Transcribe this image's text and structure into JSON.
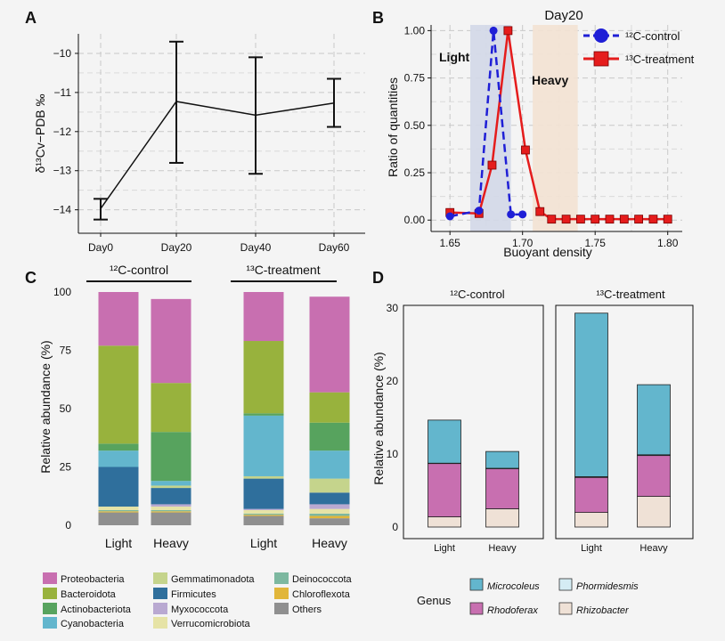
{
  "panels": [
    "A",
    "B",
    "C",
    "D"
  ],
  "chart_data": [
    {
      "id": "A",
      "type": "line",
      "title": "",
      "xlabel": "",
      "ylabel": "δ¹³Cv−PDB ‰",
      "categories": [
        "Day0",
        "Day20",
        "Day40",
        "Day60"
      ],
      "values": [
        -13.97,
        -11.23,
        -11.58,
        -11.27
      ],
      "err_low": [
        -14.25,
        -12.8,
        -13.08,
        -11.88
      ],
      "err_high": [
        -13.72,
        -9.7,
        -10.1,
        -10.65
      ],
      "yticks": [
        -14,
        -13,
        -12,
        -11,
        -10
      ],
      "ylim": [
        -14.6,
        -9.5
      ],
      "grid": true
    },
    {
      "id": "B",
      "type": "line",
      "title": "Day20",
      "xlabel": "Buoyant density",
      "ylabel": "Ratio of quantities",
      "xlim": [
        1.637,
        1.81
      ],
      "ylim": [
        -0.06,
        1.03
      ],
      "xticks": [
        "1.65",
        "1.70",
        "1.75",
        "1.80"
      ],
      "yticks": [
        "0.00",
        "0.25",
        "0.50",
        "0.75",
        "1.00"
      ],
      "regions": [
        {
          "label": "Light",
          "x0": 1.664,
          "x1": 1.692,
          "color": "#d3d8e8"
        },
        {
          "label": "Heavy",
          "x0": 1.707,
          "x1": 1.738,
          "color": "#f3e2d3"
        }
      ],
      "series": [
        {
          "name": "¹²C-control",
          "color": "#1f1fd6",
          "x": [
            1.65,
            1.67,
            1.68,
            1.692,
            1.7
          ],
          "y": [
            0.02,
            0.05,
            1.0,
            0.03,
            0.03
          ]
        },
        {
          "name": "¹³C-treatment",
          "color": "#e51c1c",
          "x": [
            1.65,
            1.67,
            1.679,
            1.69,
            1.702,
            1.712,
            1.72,
            1.73,
            1.74,
            1.75,
            1.76,
            1.77,
            1.78,
            1.79,
            1.8
          ],
          "y": [
            0.04,
            0.035,
            0.29,
            1.0,
            0.37,
            0.045,
            0.005,
            0.005,
            0.005,
            0.005,
            0.005,
            0.005,
            0.005,
            0.005,
            0.005
          ]
        }
      ],
      "grid": true,
      "legend": "top-right"
    },
    {
      "id": "C",
      "type": "bar",
      "stacked": true,
      "xlabel": "",
      "ylabel": "Relative abundance (%)",
      "ylim": [
        0,
        100
      ],
      "yticks": [
        0,
        25,
        50,
        75,
        100
      ],
      "groups": [
        "¹²C-control",
        "¹³C-treatment"
      ],
      "categories": [
        "Light",
        "Heavy",
        "Light",
        "Heavy"
      ],
      "legend_entries": [
        "Proteobacteria",
        "Bacteroidota",
        "Actinobacteriota",
        "Cyanobacteria",
        "Gemmatimonadota",
        "Firmicutes",
        "Myxococcota",
        "Verrucomicrobiota",
        "Deinococcota",
        "Chloroflexota",
        "Others"
      ],
      "colors": [
        "#c86fb0",
        "#98b23d",
        "#57a35e",
        "#63b6cd",
        "#c5d48c",
        "#2f6f9c",
        "#b9a9d1",
        "#e6e3a6",
        "#7db8a0",
        "#e1b63a",
        "#8f8f8f"
      ],
      "stack_order": [
        "Others",
        "Chloroflexota",
        "Deinococcota",
        "Verrucomicrobiota",
        "Myxococcota",
        "Firmicutes",
        "Gemmatimonadota",
        "Cyanobacteria",
        "Actinobacteriota",
        "Bacteroidota",
        "Proteobacteria"
      ],
      "series": [
        {
          "name": "Proteobacteria",
          "values": [
            23,
            36,
            21,
            41
          ]
        },
        {
          "name": "Bacteroidota",
          "values": [
            42,
            21,
            31,
            13
          ]
        },
        {
          "name": "Actinobacteriota",
          "values": [
            3,
            21,
            1,
            12
          ]
        },
        {
          "name": "Cyanobacteria",
          "values": [
            7,
            2,
            26,
            12
          ]
        },
        {
          "name": "Gemmatimonadota",
          "values": [
            0,
            1,
            1,
            6
          ]
        },
        {
          "name": "Firmicutes",
          "values": [
            17,
            7,
            13,
            5
          ]
        },
        {
          "name": "Myxococcota",
          "values": [
            0,
            1,
            0.5,
            2
          ]
        },
        {
          "name": "Verrucomicrobiota",
          "values": [
            1.5,
            1.5,
            1.5,
            2
          ]
        },
        {
          "name": "Deinococcota",
          "values": [
            0.5,
            0.5,
            0.5,
            1
          ]
        },
        {
          "name": "Chloroflexota",
          "values": [
            0.5,
            0.5,
            0.5,
            1
          ]
        },
        {
          "name": "Others",
          "values": [
            5.5,
            5.5,
            4,
            3
          ]
        }
      ]
    },
    {
      "id": "D",
      "type": "bar",
      "stacked": true,
      "xlabel": "",
      "ylabel": "Relative abundance (%)",
      "ylim": [
        0,
        30
      ],
      "yticks": [
        0,
        10,
        20,
        30
      ],
      "facets": [
        "¹²C-control",
        "¹³C-treatment"
      ],
      "categories": [
        "Light",
        "Heavy"
      ],
      "legend_title": "Genus",
      "legend_entries": [
        "Microcoleus",
        "Phormidesmis",
        "Rhodoferax",
        "Rhizobacter"
      ],
      "colors": [
        "#63b6cd",
        "#d5ecf4",
        "#c86fb0",
        "#efe1d6"
      ],
      "stack_order": [
        "Rhizobacter",
        "Rhodoferax",
        "Phormidesmis",
        "Microcoleus"
      ],
      "series": [
        {
          "name": "Microcoleus",
          "values": [
            [
              5.9,
              2.3
            ],
            [
              22.4,
              9.6
            ]
          ]
        },
        {
          "name": "Phormidesmis",
          "values": [
            [
              0.05,
              0.05
            ],
            [
              0.1,
              0.1
            ]
          ]
        },
        {
          "name": "Rhodoferax",
          "values": [
            [
              7.3,
              5.5
            ],
            [
              4.8,
              5.6
            ]
          ]
        },
        {
          "name": "Rhizobacter",
          "values": [
            [
              1.4,
              2.5
            ],
            [
              2.0,
              4.2
            ]
          ]
        }
      ]
    }
  ]
}
